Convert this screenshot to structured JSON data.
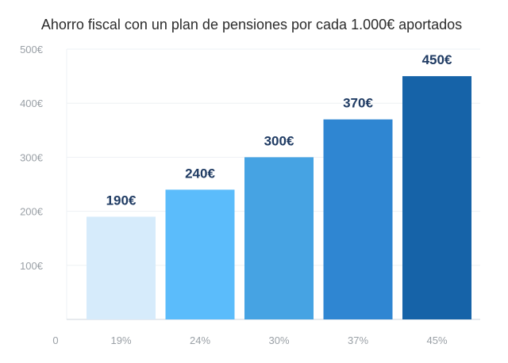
{
  "chart_data": {
    "type": "bar",
    "title": "Ahorro fiscal con un plan de pensiones por cada 1.000€ aportados",
    "xlabel": "",
    "ylabel": "",
    "categories": [
      "19%",
      "24%",
      "30%",
      "37%",
      "45%"
    ],
    "values": [
      190,
      240,
      300,
      370,
      450
    ],
    "data_labels": [
      "190€",
      "240€",
      "300€",
      "370€",
      "450€"
    ],
    "colors": [
      "#d6ebfb",
      "#5bbcfb",
      "#46a3e3",
      "#2f86d2",
      "#1663a8"
    ],
    "ylim": [
      0,
      500
    ],
    "y_ticks": [
      {
        "value": 100,
        "label": "100€"
      },
      {
        "value": 200,
        "label": "200€"
      },
      {
        "value": 300,
        "label": "300€"
      },
      {
        "value": 400,
        "label": "400€"
      },
      {
        "value": 500,
        "label": "500€"
      }
    ],
    "zero_label": "0",
    "grid": true
  }
}
